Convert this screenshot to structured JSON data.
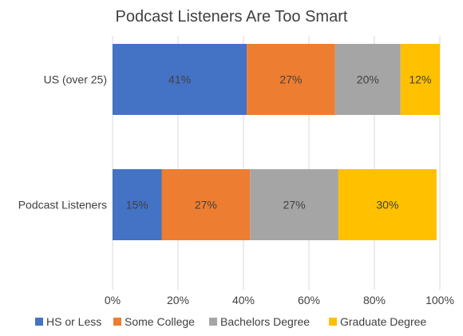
{
  "chart_data": {
    "type": "bar",
    "orientation": "horizontal",
    "stacked": true,
    "title": "Podcast Listeners Are Too Smart",
    "categories": [
      "US (over 25)",
      "Podcast Listeners"
    ],
    "series": [
      {
        "name": "HS or Less",
        "color": "#4472C4",
        "values": [
          41,
          15
        ],
        "labels": [
          "41%",
          "15%"
        ]
      },
      {
        "name": "Some College",
        "color": "#ED7D31",
        "values": [
          27,
          27
        ],
        "labels": [
          "27%",
          "27%"
        ]
      },
      {
        "name": "Bachelors Degree",
        "color": "#A5A5A5",
        "values": [
          20,
          27
        ],
        "labels": [
          "20%",
          "27%"
        ]
      },
      {
        "name": "Graduate Degree",
        "color": "#FFC000",
        "values": [
          12,
          30
        ],
        "labels": [
          "12%",
          "30%"
        ]
      }
    ],
    "xlim": [
      0,
      100
    ],
    "xticks": [
      0,
      20,
      40,
      60,
      80,
      100
    ],
    "xtick_labels": [
      "0%",
      "20%",
      "40%",
      "60%",
      "80%",
      "100%"
    ],
    "grid": true,
    "legend_position": "bottom"
  }
}
